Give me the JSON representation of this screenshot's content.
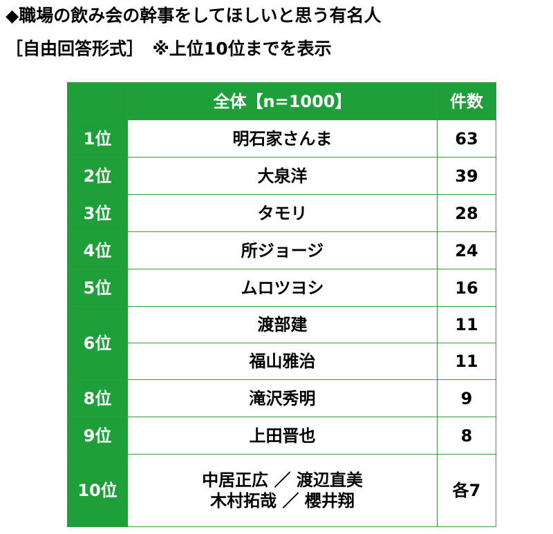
{
  "title_line1": "◆職場の飲み会の幹事をしてほしいと思う有名人",
  "title_line2": "［自由回答形式］　※上位10位までを表示",
  "table": {
    "header": {
      "rank": "",
      "name": "全体【n=1000】",
      "count": "件数"
    },
    "rows": [
      {
        "rank": "1位",
        "name": "明石家さんま",
        "count": "63"
      },
      {
        "rank": "2位",
        "name": "大泉洋",
        "count": "39"
      },
      {
        "rank": "3位",
        "name": "タモリ",
        "count": "28"
      },
      {
        "rank": "4位",
        "name": "所ジョージ",
        "count": "24"
      },
      {
        "rank": "5位",
        "name": "ムロツヨシ",
        "count": "16"
      },
      {
        "rank": "6位",
        "entries": [
          {
            "name": "渡部建",
            "count": "11"
          },
          {
            "name": "福山雅治",
            "count": "11"
          }
        ]
      },
      {
        "rank": "8位",
        "name": "滝沢秀明",
        "count": "9"
      },
      {
        "rank": "9位",
        "name": "上田晋也",
        "count": "8"
      },
      {
        "rank": "10位",
        "name_lines": [
          "中居正広 ／ 渡辺直美",
          "木村拓哉 ／ 櫻井翔"
        ],
        "count": "各7"
      }
    ]
  }
}
